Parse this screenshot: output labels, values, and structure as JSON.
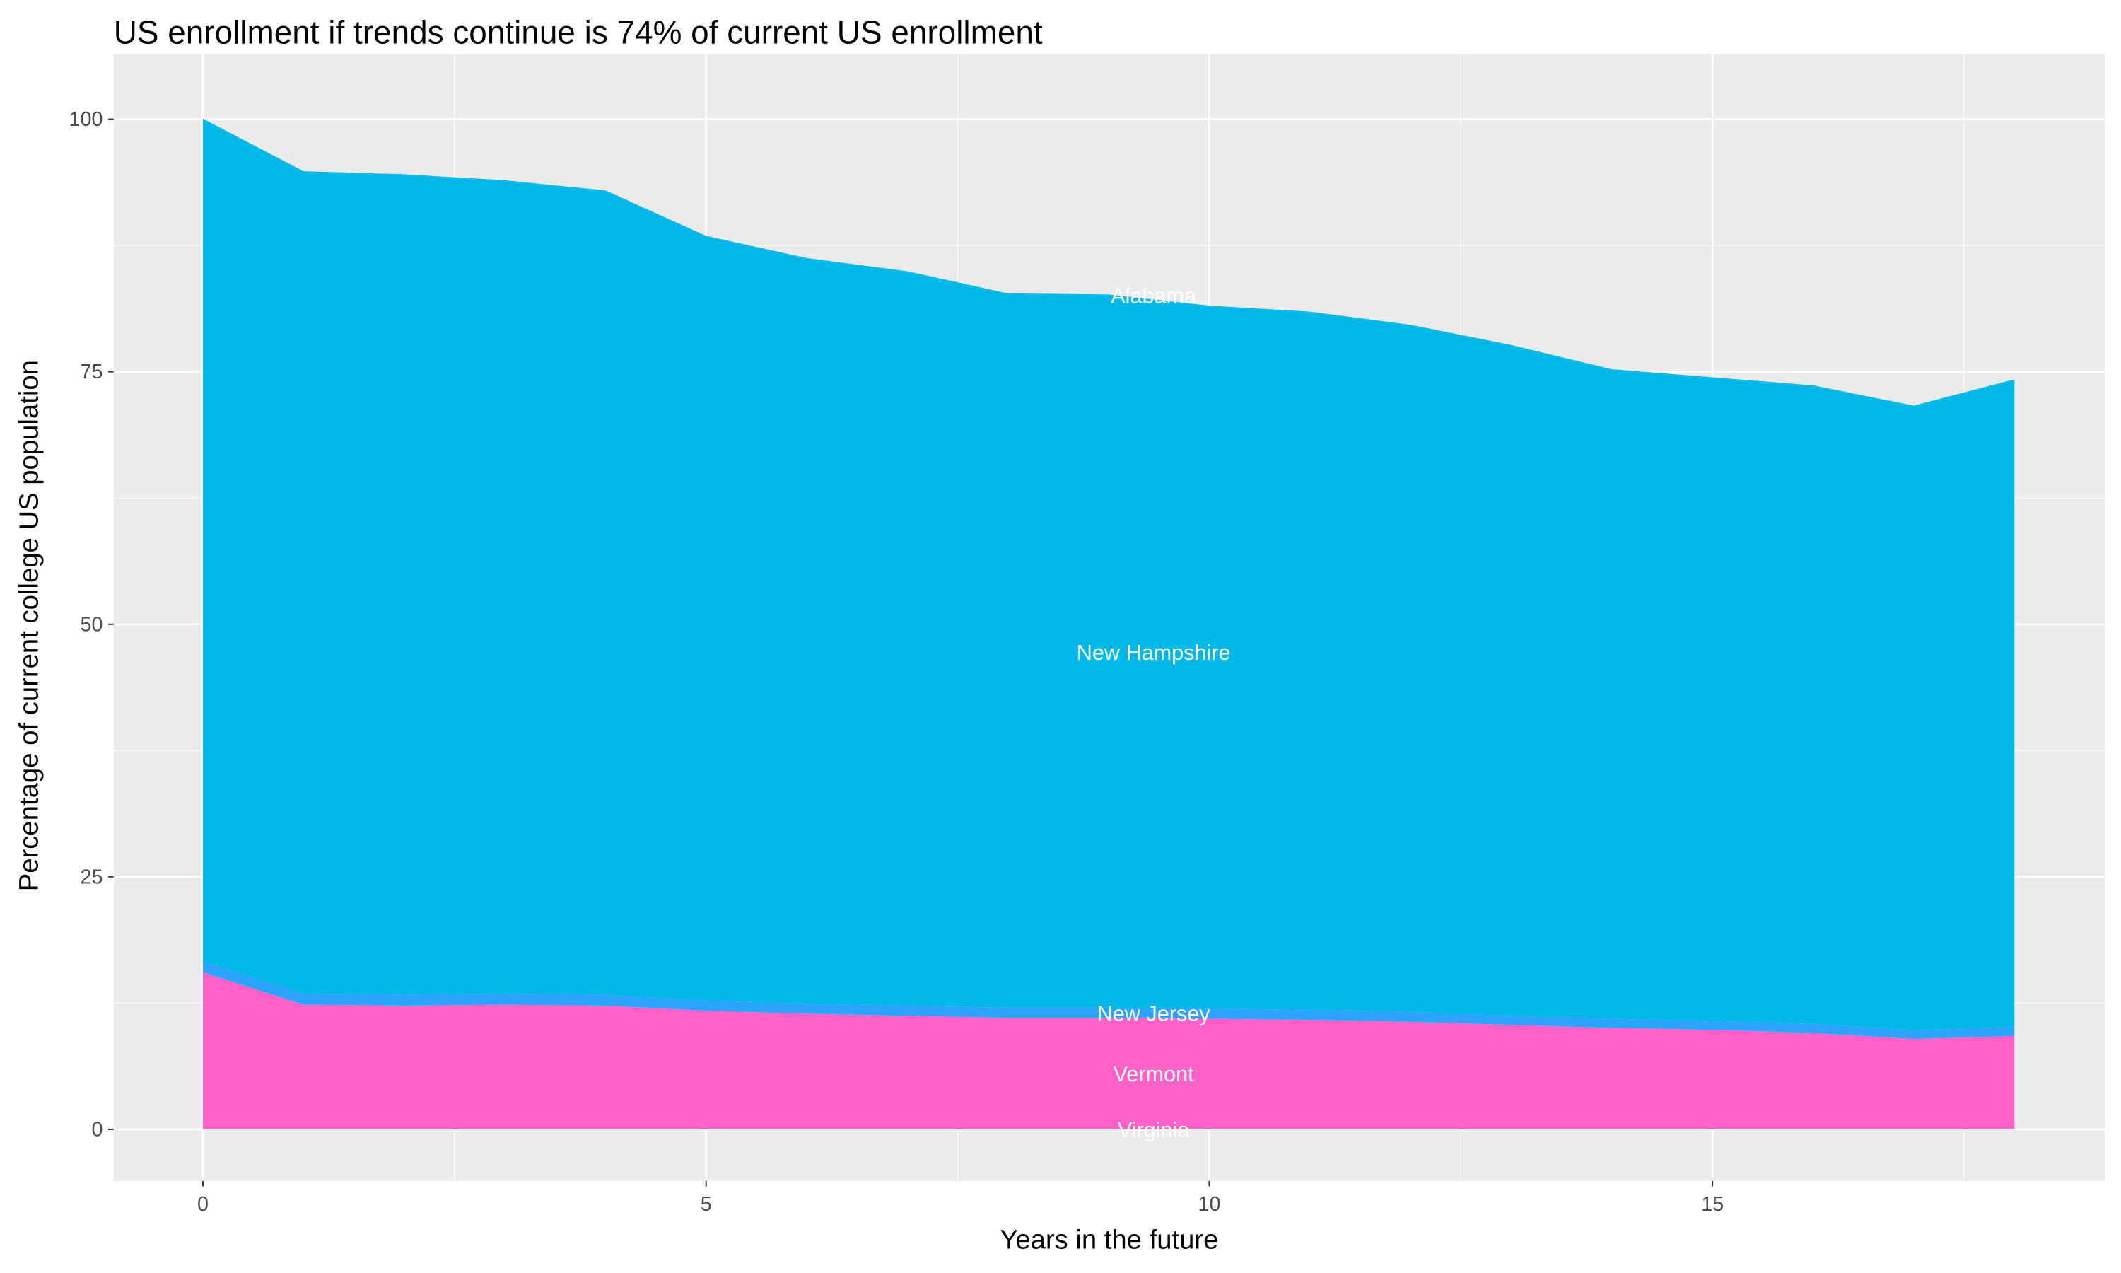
{
  "chart_data": {
    "type": "area",
    "stacked": true,
    "title": "US enrollment if trends continue is 74% of current US enrollment",
    "xlabel": "Years in the future",
    "ylabel": "Percentage of current college US population",
    "xlim": [
      -0.9,
      18.9
    ],
    "ylim": [
      -5,
      105
    ],
    "xticks": [
      0,
      5,
      10,
      15
    ],
    "yticks": [
      0,
      25,
      50,
      75,
      100
    ],
    "grid": true,
    "legend": "none (labels placed on areas)",
    "x": [
      0,
      1,
      2,
      3,
      4,
      5,
      6,
      7,
      8,
      9,
      10,
      11,
      12,
      13,
      14,
      15,
      16,
      17,
      18
    ],
    "series": [
      {
        "name": "Virginia",
        "color": "#F8766D",
        "values": [
          0.05,
          0.05,
          0.05,
          0.05,
          0.05,
          0.05,
          0.05,
          0.05,
          0.05,
          0.05,
          0.05,
          0.05,
          0.05,
          0.05,
          0.05,
          0.05,
          0.05,
          0.05,
          0.05
        ]
      },
      {
        "name": "Vermont",
        "color": "#FF61C9",
        "values": [
          15.5,
          12.3,
          12.2,
          12.3,
          12.2,
          11.7,
          11.4,
          11.2,
          11.0,
          11.0,
          10.9,
          10.8,
          10.6,
          10.3,
          10.0,
          9.8,
          9.5,
          8.9,
          9.2
        ]
      },
      {
        "name": "New Jersey",
        "color": "#2AA4FF",
        "values": [
          1.1,
          1.1,
          1.1,
          1.1,
          1.1,
          1.0,
          1.0,
          1.0,
          1.0,
          1.0,
          1.0,
          1.0,
          1.0,
          0.9,
          0.9,
          0.9,
          0.9,
          0.9,
          0.9
        ]
      },
      {
        "name": "New Hampshire",
        "color": "#00B8E7",
        "values": [
          83.3,
          81.3,
          81.1,
          80.4,
          79.5,
          75.6,
          73.7,
          72.6,
          70.6,
          70.5,
          69.5,
          69.0,
          67.9,
          66.3,
          64.2,
          63.6,
          63.1,
          61.7,
          64.0
        ]
      },
      {
        "name": "Alabama",
        "color": "#00B8E7",
        "values": [
          0.1,
          0.1,
          0.1,
          0.1,
          0.1,
          0.1,
          0.1,
          0.1,
          0.1,
          0.1,
          0.1,
          0.1,
          0.1,
          0.1,
          0.1,
          0.1,
          0.1,
          0.1,
          0.1
        ]
      }
    ],
    "label_x": 9,
    "colors": {
      "panel": "#EBEBEB",
      "grid": "#FFFFFF",
      "label_text": "#FFFFFF"
    }
  }
}
